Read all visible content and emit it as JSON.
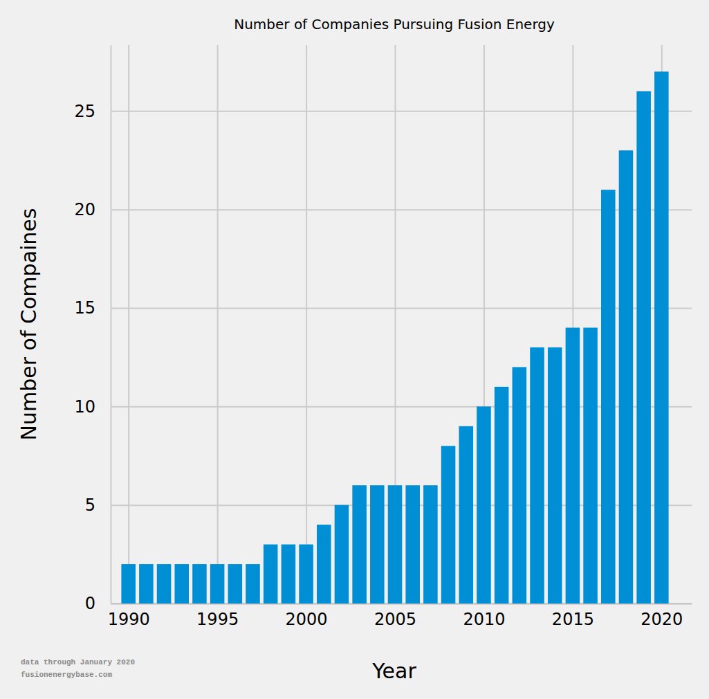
{
  "chart_data": {
    "type": "bar",
    "title": "Number of Companies Pursuing Fusion Energy",
    "x_label": "Year",
    "y_label": "Number of Compaines",
    "annotations": [
      "data through January 2020",
      "fusionenergybase.com"
    ],
    "x": [
      1990,
      1991,
      1992,
      1993,
      1994,
      1995,
      1996,
      1997,
      1998,
      1999,
      2000,
      2001,
      2002,
      2003,
      2004,
      2005,
      2006,
      2007,
      2008,
      2009,
      2010,
      2011,
      2012,
      2013,
      2014,
      2015,
      2016,
      2017,
      2018,
      2019,
      2020
    ],
    "values": [
      2,
      2,
      2,
      2,
      2,
      2,
      2,
      2,
      3,
      3,
      3,
      4,
      5,
      6,
      6,
      6,
      6,
      6,
      8,
      9,
      10,
      11,
      12,
      13,
      13,
      14,
      14,
      21,
      23,
      26,
      27
    ],
    "color": "#008fd5",
    "xlim": [
      1989,
      2021.7
    ],
    "xticks": [
      1990,
      1995,
      2000,
      2005,
      2010,
      2015,
      2020
    ],
    "ylim": [
      0,
      28.35
    ],
    "yticks": [
      0,
      5,
      10,
      15,
      20,
      25
    ],
    "grid": true
  }
}
